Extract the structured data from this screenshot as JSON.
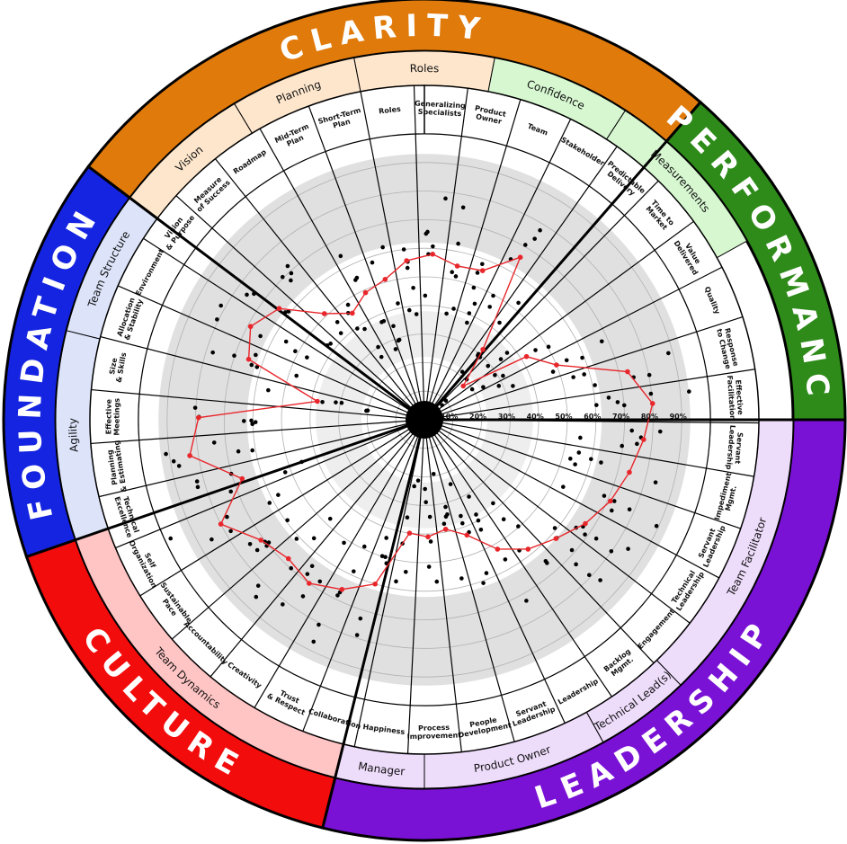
{
  "colors": {
    "clarity": "#e07a0b",
    "clarity_light": "#fde6cc",
    "performance": "#2e8b1a",
    "performance_light": "#d6f7d0",
    "leadership": "#7a12d6",
    "leadership_light": "#eedcfb",
    "culture": "#f20c0c",
    "culture_light": "#ffc4c4",
    "foundation": "#1524e0",
    "foundation_light": "#dde4fa",
    "trace": "#e8262b"
  },
  "categories": [
    {
      "label": "CLARITY",
      "color": "clarity"
    },
    {
      "label": "PERFORMANCE",
      "color": "performance"
    },
    {
      "label": "LEADERSHIP",
      "color": "leadership"
    },
    {
      "label": "CULTURE",
      "color": "culture"
    },
    {
      "label": "FOUNDATION",
      "color": "foundation"
    }
  ],
  "subcategories": [
    {
      "label": "Vision",
      "color": "clarity_light"
    },
    {
      "label": "Planning",
      "color": "clarity_light"
    },
    {
      "label": "Roles",
      "color": "clarity_light"
    },
    {
      "label": "Confidence",
      "color": "performance_light"
    },
    {
      "label": "Measurements",
      "color": "performance_light"
    },
    {
      "label": "Team Facilitator",
      "color": "leadership_light"
    },
    {
      "label": "Technical Lead(s)",
      "color": "leadership_light"
    },
    {
      "label": "Product Owner",
      "color": "leadership_light"
    },
    {
      "label": "Manager",
      "color": "leadership_light"
    },
    {
      "label": "Team Dynamics",
      "color": "culture_light"
    },
    {
      "label": "Agility",
      "color": "foundation_light"
    },
    {
      "label": "Team Structure",
      "color": "foundation_light"
    }
  ],
  "metrics": [
    {
      "label": [
        "Roles"
      ],
      "value": 0.56
    },
    {
      "label": [
        "Generalizing",
        "Specialists"
      ],
      "value": 0.58
    },
    {
      "label": [
        "Product",
        "Owner"
      ],
      "value": 0.55
    },
    {
      "label": [
        "Team"
      ],
      "value": 0.56
    },
    {
      "label": [
        "Stakeholder"
      ],
      "value": 0.66
    },
    {
      "label": [
        "Predictable",
        "Delivery"
      ],
      "value": 0.32
    },
    {
      "label": [
        "Time to",
        "Market"
      ],
      "value": 0.18
    },
    {
      "label": [
        "Value",
        "Delivered"
      ],
      "value": 0.42
    },
    {
      "label": [
        "Quality"
      ],
      "value": 0.5
    },
    {
      "label": [
        "Response",
        "to Change"
      ],
      "value": 0.73
    },
    {
      "label": [
        "Effective",
        "Facilitation"
      ],
      "value": 0.8
    },
    {
      "label": [
        "Servant",
        "Leadership"
      ],
      "value": 0.77
    },
    {
      "label": [
        "Impediment",
        "Mgmt."
      ],
      "value": 0.74
    },
    {
      "label": [
        "Servant",
        "Leadership"
      ],
      "value": 0.71
    },
    {
      "label": [
        "Technical",
        "Leadership"
      ],
      "value": 0.67
    },
    {
      "label": [
        "Engagement"
      ],
      "value": 0.62
    },
    {
      "label": [
        "Backlog",
        "Mgmt."
      ],
      "value": 0.58
    },
    {
      "label": [
        "Leadership"
      ],
      "value": 0.52
    },
    {
      "label": [
        "Servant",
        "Leadership"
      ],
      "value": 0.43
    },
    {
      "label": [
        "People",
        "Development"
      ],
      "value": 0.39
    },
    {
      "label": [
        "Process",
        "Improvement"
      ],
      "value": 0.41
    },
    {
      "label": [
        "Happiness"
      ],
      "value": 0.4
    },
    {
      "label": [
        "Collaboration"
      ],
      "value": 0.6
    },
    {
      "label": [
        "Trust",
        "& Respect"
      ],
      "value": 0.66
    },
    {
      "label": [
        "Creativity"
      ],
      "value": 0.7
    },
    {
      "label": [
        "Accountability"
      ],
      "value": 0.68
    },
    {
      "label": [
        "Sustainable",
        "Pace"
      ],
      "value": 0.71
    },
    {
      "label": [
        "Self",
        "Organization"
      ],
      "value": 0.8
    },
    {
      "label": [
        "Technical",
        "Excellence"
      ],
      "value": 0.67
    },
    {
      "label": [
        "Planning",
        "& Estimating"
      ],
      "value": 0.83
    },
    {
      "label": [
        "Effective",
        "Meetings"
      ],
      "value": 0.79
    },
    {
      "label": [
        "Size",
        "& Skills"
      ],
      "value": 0.38
    },
    {
      "label": [
        "Allocation",
        "& Stability"
      ],
      "value": 0.65
    },
    {
      "label": [
        "Environment"
      ],
      "value": 0.69
    },
    {
      "label": [
        "Vision",
        "& Purpose"
      ],
      "value": 0.64
    },
    {
      "label": [
        "Measure",
        "of Success"
      ],
      "value": 0.51
    },
    {
      "label": [
        "Roadmap"
      ],
      "value": 0.45
    },
    {
      "label": [
        "Mid-Term",
        "Plan"
      ],
      "value": 0.49
    },
    {
      "label": [
        "Short-Term",
        "Plan"
      ],
      "value": 0.51
    }
  ],
  "percent_labels": [
    "10%",
    "20%",
    "30%",
    "40%",
    "50%",
    "60%",
    "70%",
    "80%",
    "90%"
  ]
}
